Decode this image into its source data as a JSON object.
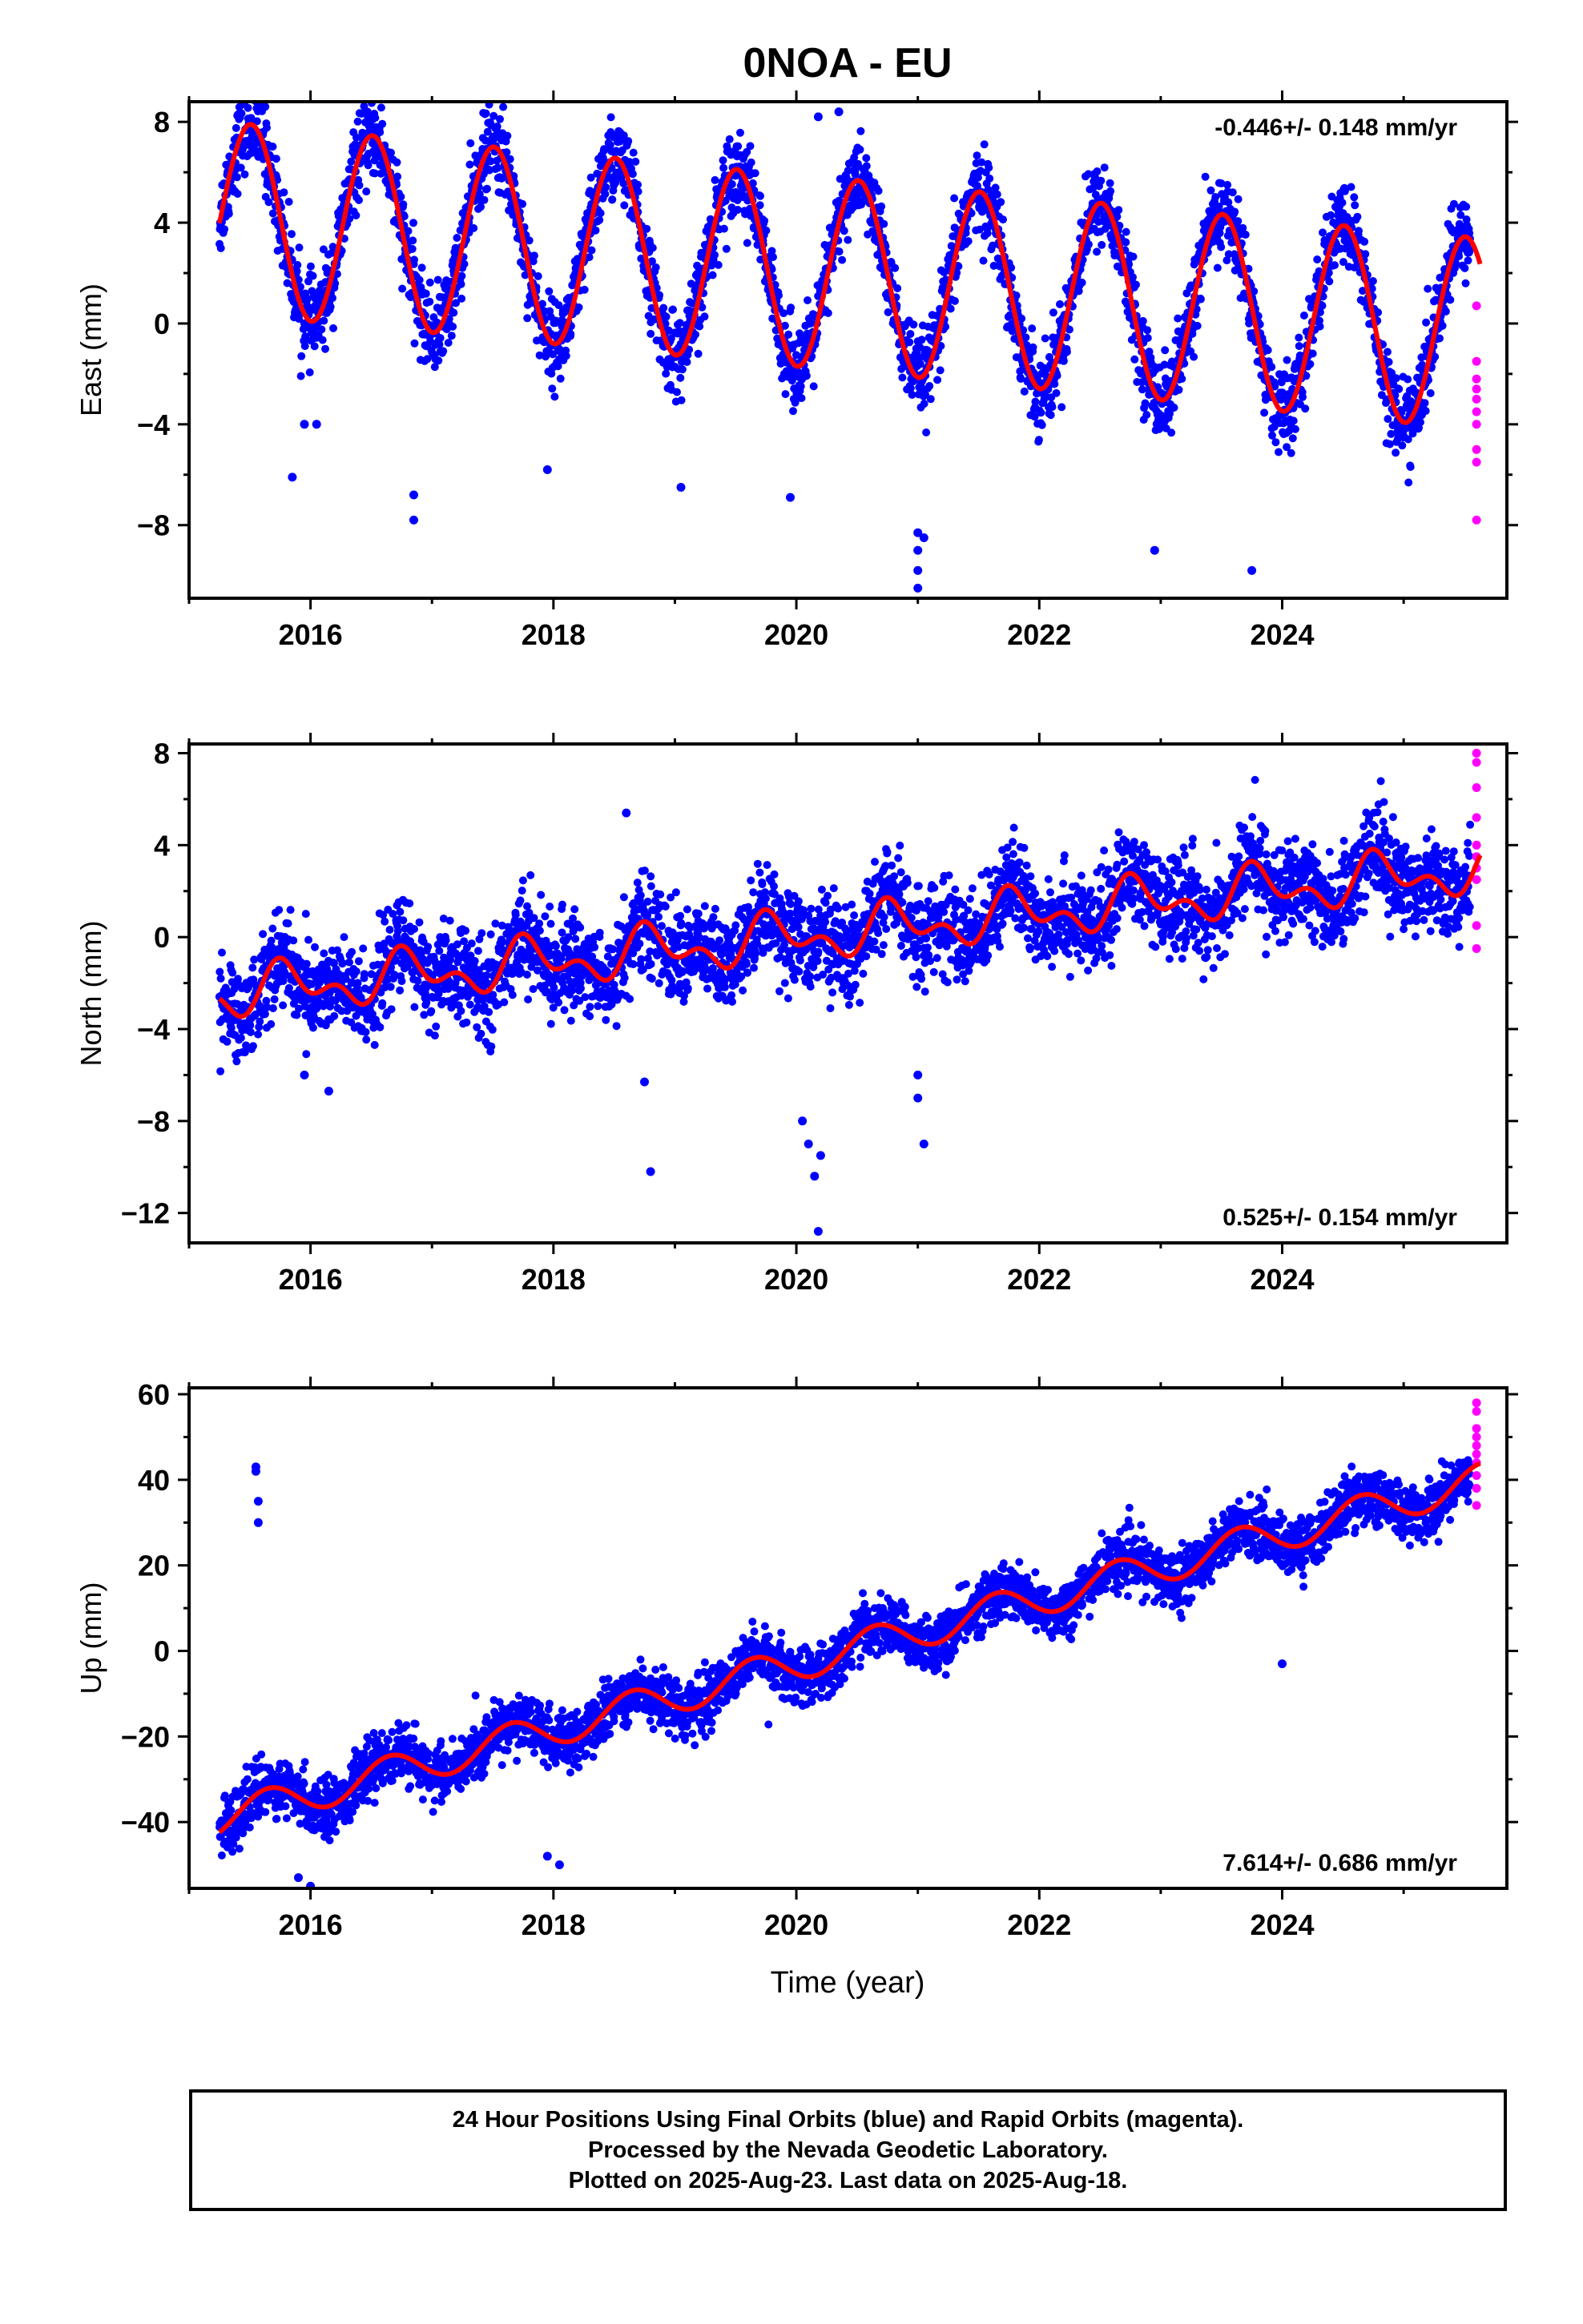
{
  "title": "0NOA - EU",
  "colors": {
    "final": "#0000ff",
    "rapid": "#ff00ff",
    "model": "#ff0000",
    "axis": "#000000"
  },
  "chart_data": [
    {
      "type": "scatter",
      "ylabel": "East (mm)",
      "xlabel": "",
      "rate": "-0.446+/- 0.148 mm/yr",
      "rate_position": "top-right",
      "xlim": [
        2015.0,
        2025.85
      ],
      "ylim": [
        -10.9,
        8.8
      ],
      "xticks": [
        2016,
        2018,
        2020,
        2022,
        2024
      ],
      "xtick_labels": [
        "2016",
        "2018",
        "2020",
        "2022",
        "2024"
      ],
      "yticks": [
        -8,
        -4,
        0,
        4,
        8
      ],
      "ytick_labels": [
        "−8",
        "−4",
        "0",
        "4",
        "8"
      ],
      "x_range": [
        2015.25,
        2025.55
      ],
      "rapid_x_range": [
        2025.56,
        2025.63
      ],
      "model": {
        "offset": 2.1,
        "rate": -0.446,
        "annual_amplitude": 3.8,
        "annual_phase": 0.26,
        "start": 2015.25,
        "end": 2025.63
      },
      "noise": 0.8,
      "outliers": [
        [
          2015.85,
          -6.1
        ],
        [
          2015.95,
          -4.0
        ],
        [
          2016.05,
          -4.0
        ],
        [
          2016.85,
          -6.8
        ],
        [
          2016.85,
          -7.8
        ],
        [
          2017.95,
          -5.8
        ],
        [
          2019.05,
          -6.5
        ],
        [
          2019.95,
          -6.9
        ],
        [
          2020.18,
          8.2
        ],
        [
          2020.35,
          8.4
        ],
        [
          2021.0,
          -8.3
        ],
        [
          2021.0,
          -9.0
        ],
        [
          2021.0,
          -9.8
        ],
        [
          2021.0,
          -10.5
        ],
        [
          2021.05,
          -8.5
        ],
        [
          2022.95,
          -9.0
        ],
        [
          2023.75,
          -9.8
        ]
      ],
      "rapid_points": [
        [
          2025.6,
          0.7
        ],
        [
          2025.6,
          -1.5
        ],
        [
          2025.6,
          -2.2
        ],
        [
          2025.6,
          -3.0
        ],
        [
          2025.6,
          -4.0
        ],
        [
          2025.6,
          -5.0
        ],
        [
          2025.6,
          -5.5
        ],
        [
          2025.6,
          -7.8
        ],
        [
          2025.6,
          -2.6
        ],
        [
          2025.6,
          -3.5
        ]
      ]
    },
    {
      "type": "scatter",
      "ylabel": "North (mm)",
      "xlabel": "",
      "rate": "0.525+/- 0.154 mm/yr",
      "rate_position": "bottom-right",
      "xlim": [
        2015.0,
        2025.85
      ],
      "ylim": [
        -13.3,
        8.4
      ],
      "xticks": [
        2016,
        2018,
        2020,
        2022,
        2024
      ],
      "xtick_labels": [
        "2016",
        "2018",
        "2020",
        "2022",
        "2024"
      ],
      "yticks": [
        -12,
        -8,
        -4,
        0,
        4,
        8
      ],
      "ytick_labels": [
        "−12",
        "−8",
        "−4",
        "0",
        "4",
        "8"
      ],
      "x_range": [
        2015.25,
        2025.55
      ],
      "rapid_x_range": [
        2025.56,
        2025.63
      ],
      "model": {
        "offset": -0.0,
        "rate": 0.525,
        "annual_amplitude": 0.8,
        "annual_phase": 0.55,
        "semi_amplitude": 0.6,
        "semi_phase": 0.1,
        "start": 2015.25,
        "end": 2025.63
      },
      "noise": 1.0,
      "outliers": [
        [
          2018.6,
          5.4
        ],
        [
          2018.75,
          -6.3
        ],
        [
          2018.8,
          -10.2
        ],
        [
          2020.05,
          -8.0
        ],
        [
          2020.1,
          -9.0
        ],
        [
          2020.15,
          -10.4
        ],
        [
          2020.2,
          -9.5
        ],
        [
          2020.18,
          -12.8
        ],
        [
          2021.0,
          -6.0
        ],
        [
          2021.0,
          -7.0
        ],
        [
          2021.05,
          -9.0
        ],
        [
          2015.95,
          -6.0
        ],
        [
          2016.15,
          -6.7
        ]
      ],
      "rapid_points": [
        [
          2025.6,
          8.0
        ],
        [
          2025.6,
          7.6
        ],
        [
          2025.6,
          6.5
        ],
        [
          2025.6,
          5.2
        ],
        [
          2025.6,
          4.0
        ],
        [
          2025.6,
          3.0
        ],
        [
          2025.6,
          2.5
        ],
        [
          2025.6,
          0.5
        ],
        [
          2025.6,
          -0.5
        ],
        [
          2025.6,
          3.5
        ]
      ]
    },
    {
      "type": "scatter",
      "ylabel": "Up (mm)",
      "xlabel": "Time (year)",
      "rate": "7.614+/- 0.686 mm/yr",
      "rate_position": "bottom-right",
      "xlim": [
        2015.0,
        2025.85
      ],
      "ylim": [
        -55.5,
        61.5
      ],
      "xticks": [
        2016,
        2018,
        2020,
        2022,
        2024
      ],
      "xtick_labels": [
        "2016",
        "2018",
        "2020",
        "2022",
        "2024"
      ],
      "yticks": [
        -40,
        -20,
        0,
        20,
        40,
        60
      ],
      "ytick_labels": [
        "−40",
        "−20",
        "0",
        "20",
        "40",
        "60"
      ],
      "x_range": [
        2015.25,
        2025.55
      ],
      "rapid_x_range": [
        2025.56,
        2025.63
      ],
      "model": {
        "offset": -3.0,
        "rate": 7.614,
        "annual_amplitude": 4.0,
        "annual_phase": 0.4,
        "start": 2015.25,
        "end": 2025.63
      },
      "noise": 3.2,
      "outliers": [
        [
          2015.55,
          43.0
        ],
        [
          2015.55,
          42.0
        ],
        [
          2015.57,
          35.0
        ],
        [
          2015.57,
          30.0
        ],
        [
          2015.9,
          -53.0
        ],
        [
          2016.0,
          -55.0
        ],
        [
          2017.95,
          -48.0
        ],
        [
          2018.05,
          -50.0
        ],
        [
          2024.0,
          -3.0
        ]
      ],
      "rapid_points": [
        [
          2025.6,
          58.0
        ],
        [
          2025.6,
          56.0
        ],
        [
          2025.6,
          52.0
        ],
        [
          2025.6,
          50.0
        ],
        [
          2025.6,
          48.0
        ],
        [
          2025.6,
          46.0
        ],
        [
          2025.6,
          44.0
        ],
        [
          2025.6,
          41.0
        ],
        [
          2025.6,
          38.0
        ],
        [
          2025.6,
          34.0
        ]
      ]
    }
  ],
  "footer": {
    "line1": "24 Hour Positions Using Final Orbits (blue) and Rapid Orbits (magenta).",
    "line2": "Processed by the Nevada Geodetic Laboratory.",
    "line3": "Plotted on 2025-Aug-23. Last data on 2025-Aug-18."
  }
}
